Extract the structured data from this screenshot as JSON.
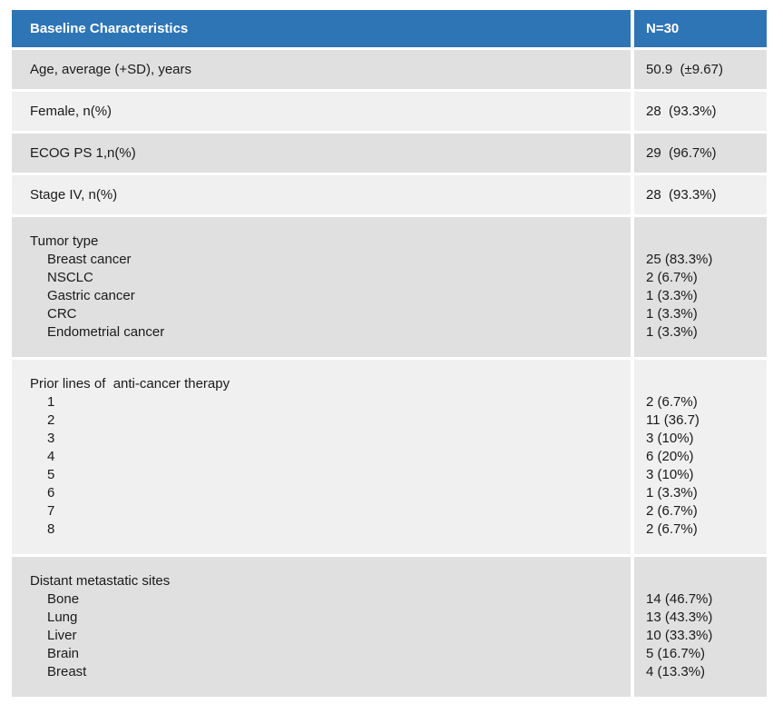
{
  "colors": {
    "header_bg": "#2e75b6",
    "header_text": "#ffffff",
    "row_dark": "#e0e0e0",
    "row_light": "#f0f0f0",
    "separator": "#ffffff",
    "body_text": "#1a1a1a"
  },
  "table": {
    "header": {
      "label": "Baseline Characteristics",
      "value": "N=30"
    },
    "rows": [
      {
        "type": "simple",
        "shade": "dark",
        "label": "Age, average (+SD), years",
        "value": "50.9  (±9.67)"
      },
      {
        "type": "simple",
        "shade": "light",
        "label": "Female, n(%)",
        "value": "28  (93.3%)"
      },
      {
        "type": "simple",
        "shade": "dark",
        "label": "ECOG PS 1,n(%)",
        "value": "29  (96.7%)"
      },
      {
        "type": "simple",
        "shade": "light",
        "label": "Stage IV, n(%)",
        "value": "28  (93.3%)"
      },
      {
        "type": "group",
        "shade": "dark",
        "label": "Tumor type",
        "items": [
          {
            "label": "Breast cancer",
            "value": "25 (83.3%)"
          },
          {
            "label": "NSCLC",
            "value": "2 (6.7%)"
          },
          {
            "label": "Gastric cancer",
            "value": "1 (3.3%)"
          },
          {
            "label": "CRC",
            "value": "1 (3.3%)"
          },
          {
            "label": "Endometrial cancer",
            "value": "1 (3.3%)"
          }
        ]
      },
      {
        "type": "group",
        "shade": "light",
        "label": "Prior lines of  anti-cancer therapy",
        "items": [
          {
            "label": "1",
            "value": "2 (6.7%)"
          },
          {
            "label": "2",
            "value": "11 (36.7)"
          },
          {
            "label": "3",
            "value": "3 (10%)"
          },
          {
            "label": "4",
            "value": "6 (20%)"
          },
          {
            "label": "5",
            "value": "3 (10%)"
          },
          {
            "label": "6",
            "value": "1 (3.3%)"
          },
          {
            "label": "7",
            "value": "2 (6.7%)"
          },
          {
            "label": "8",
            "value": "2 (6.7%)"
          }
        ]
      },
      {
        "type": "group",
        "shade": "dark",
        "label": "Distant metastatic sites",
        "items": [
          {
            "label": "Bone",
            "value": "14 (46.7%)"
          },
          {
            "label": "Lung",
            "value": "13 (43.3%)"
          },
          {
            "label": "Liver",
            "value": "10 (33.3%)"
          },
          {
            "label": "Brain",
            "value": "5 (16.7%)"
          },
          {
            "label": "Breast",
            "value": "4 (13.3%)"
          }
        ]
      }
    ]
  }
}
